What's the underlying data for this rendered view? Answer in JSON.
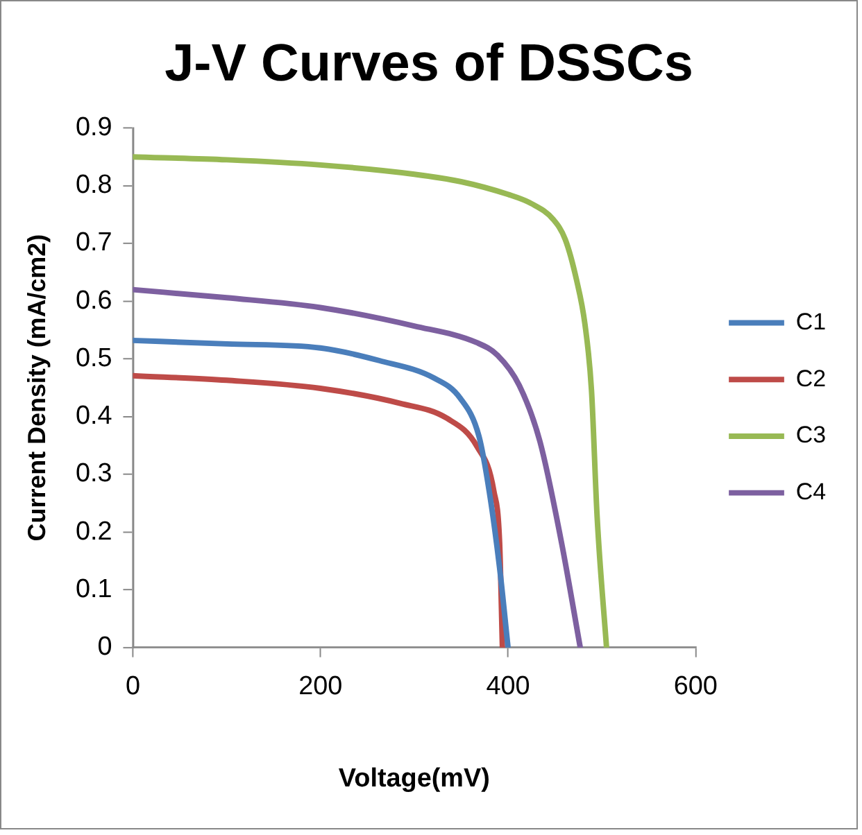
{
  "chart_data": {
    "type": "line",
    "title": "J-V Curves of DSSCs",
    "xlabel": "Voltage(mV)",
    "ylabel": "Current Density (mA/cm2)",
    "xlim": [
      0,
      600
    ],
    "xticks": [
      0,
      200,
      400,
      600
    ],
    "ylim": [
      0,
      0.9
    ],
    "yticks": [
      0,
      0.1,
      0.2,
      0.3,
      0.4,
      0.5,
      0.6,
      0.7,
      0.8,
      0.9
    ],
    "grid": false,
    "legend": "right",
    "marker": "none",
    "line_style": "solid",
    "series": [
      {
        "name": "C1",
        "color": "#4a7ebb",
        "x": [
          0,
          100,
          200,
          263,
          321,
          349,
          369,
          380,
          391,
          400
        ],
        "values": [
          0.532,
          0.526,
          0.519,
          0.497,
          0.467,
          0.432,
          0.366,
          0.27,
          0.138,
          0
        ]
      },
      {
        "name": "C2",
        "color": "#be4b48",
        "x": [
          0,
          100,
          200,
          285,
          335,
          367,
          385,
          391,
          394
        ],
        "values": [
          0.471,
          0.463,
          0.449,
          0.423,
          0.397,
          0.348,
          0.27,
          0.182,
          0
        ]
      },
      {
        "name": "C3",
        "color": "#98b954",
        "x": [
          0,
          100,
          200,
          300,
          350,
          400,
          425,
          448,
          461,
          473,
          482,
          489,
          495,
          505
        ],
        "values": [
          0.85,
          0.845,
          0.836,
          0.82,
          0.807,
          0.785,
          0.769,
          0.742,
          0.707,
          0.637,
          0.56,
          0.445,
          0.226,
          0
        ]
      },
      {
        "name": "C4",
        "color": "#7d60a0",
        "x": [
          0,
          100,
          200,
          300,
          367,
          389,
          412,
          434,
          457,
          477
        ],
        "values": [
          0.62,
          0.606,
          0.589,
          0.557,
          0.528,
          0.506,
          0.454,
          0.357,
          0.182,
          0
        ]
      }
    ]
  }
}
